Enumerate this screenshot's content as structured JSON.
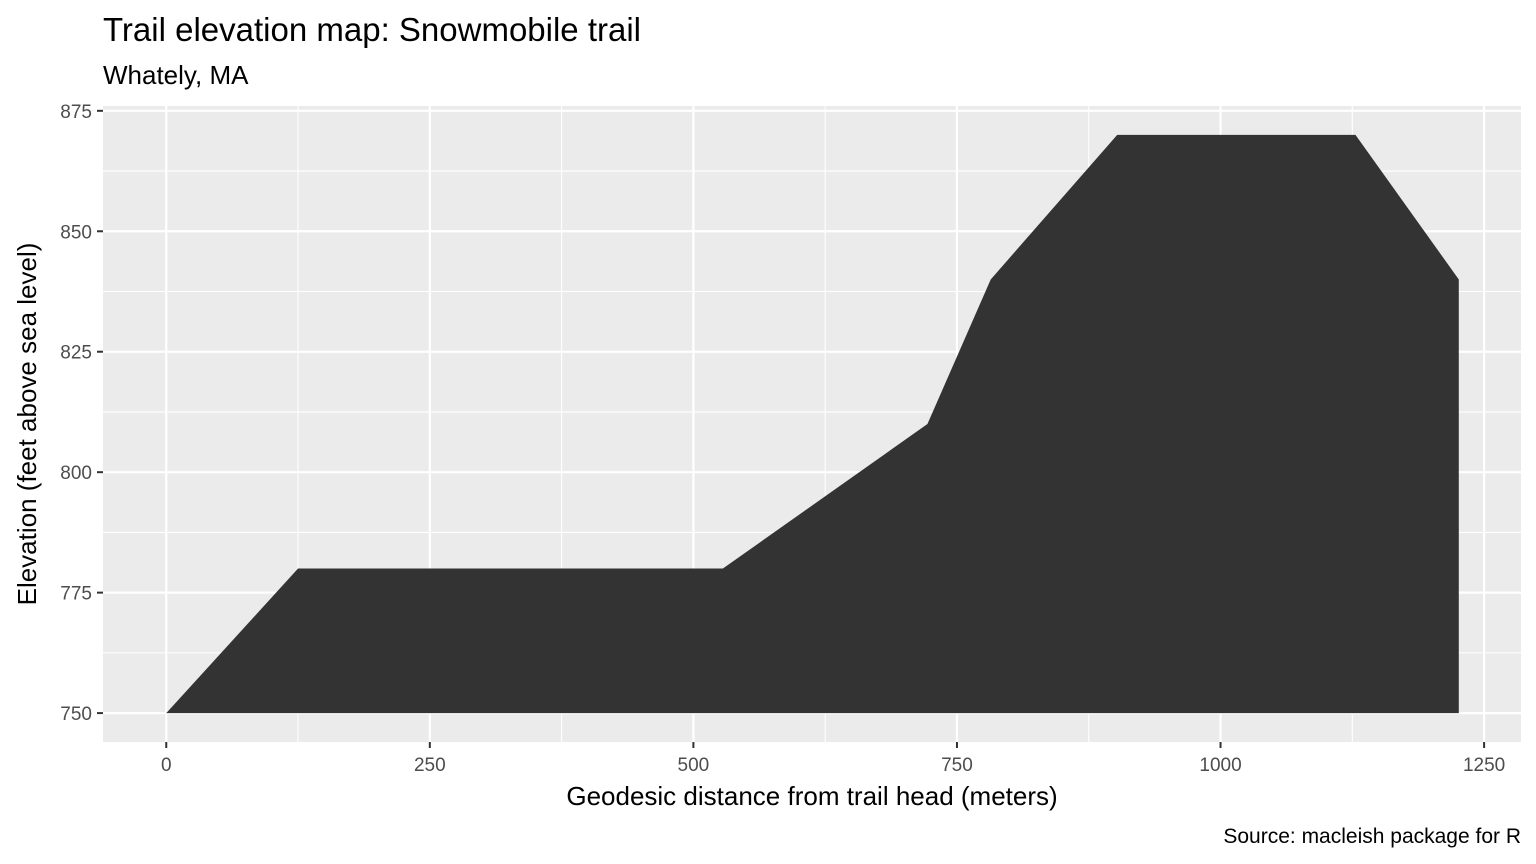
{
  "chart_data": {
    "type": "area",
    "title": "Trail elevation map: Snowmobile trail",
    "subtitle": "Whately, MA",
    "xlabel": "Geodesic distance from trail head (meters)",
    "ylabel": "Elevation (feet above sea level)",
    "caption": "Source: macleish package for R",
    "xlim": [
      -60,
      1285
    ],
    "ylim": [
      744,
      876
    ],
    "x_ticks": [
      0,
      250,
      500,
      750,
      1000,
      1250
    ],
    "y_ticks": [
      750,
      775,
      800,
      825,
      850,
      875
    ],
    "baseline": 750,
    "grid": true,
    "legend": "none",
    "fill_color": "#333333",
    "panel_color": "#ebebeb",
    "points": [
      {
        "x": 0,
        "y": 750
      },
      {
        "x": 125,
        "y": 780
      },
      {
        "x": 528,
        "y": 780
      },
      {
        "x": 722,
        "y": 810
      },
      {
        "x": 782,
        "y": 840
      },
      {
        "x": 902,
        "y": 870
      },
      {
        "x": 1128,
        "y": 870
      },
      {
        "x": 1226,
        "y": 840
      }
    ]
  }
}
